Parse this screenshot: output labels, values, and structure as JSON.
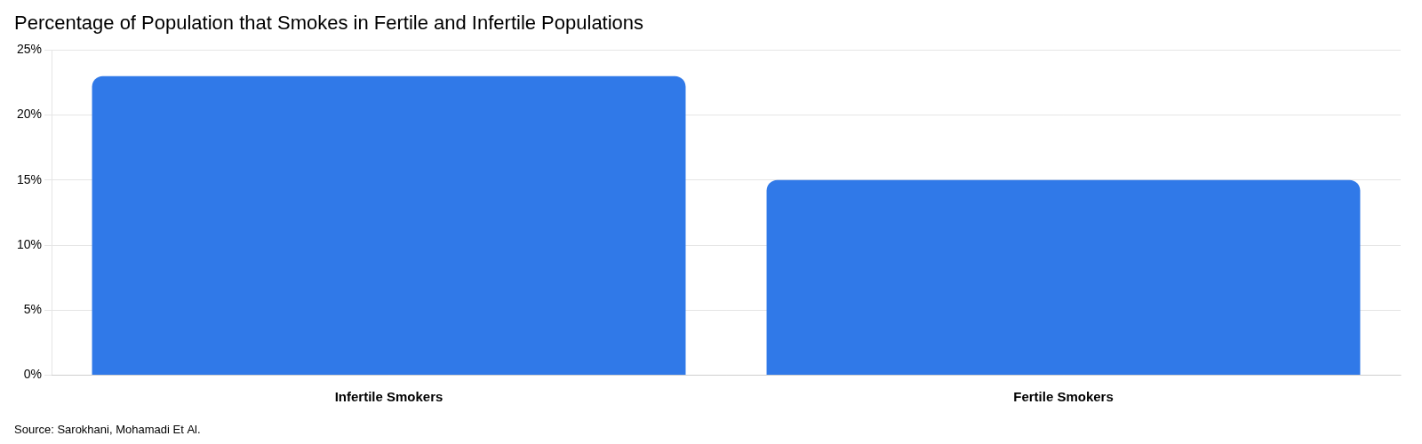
{
  "chart_data": {
    "type": "bar",
    "title": "Percentage of Population that Smokes in Fertile and Infertile Populations",
    "categories": [
      "Infertile Smokers",
      "Fertile Smokers"
    ],
    "values": [
      23,
      15
    ],
    "color": "#3079e8",
    "ylim": [
      0,
      25
    ],
    "yticks": [
      {
        "value": 0,
        "label": "0%"
      },
      {
        "value": 5,
        "label": "5%"
      },
      {
        "value": 10,
        "label": "10%"
      },
      {
        "value": 15,
        "label": "15%"
      },
      {
        "value": 20,
        "label": "20%"
      },
      {
        "value": 25,
        "label": "25%"
      }
    ],
    "grid": true,
    "annotations": [
      "Source: Sarokhani, Mohamadi Et Al."
    ]
  }
}
